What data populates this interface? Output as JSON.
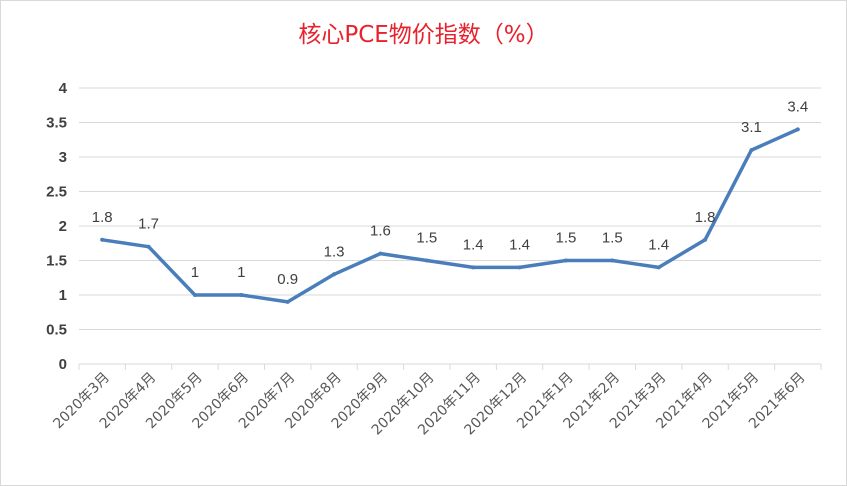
{
  "chart_data": {
    "type": "line",
    "title": "核心PCE物价指数（%）",
    "categories": [
      "2020年3月",
      "2020年4月",
      "2020年5月",
      "2020年6月",
      "2020年7月",
      "2020年8月",
      "2020年9月",
      "2020年10月",
      "2020年11月",
      "2020年12月",
      "2021年1月",
      "2021年2月",
      "2021年3月",
      "2021年4月",
      "2021年5月",
      "2021年6月"
    ],
    "values": [
      1.8,
      1.7,
      1,
      1,
      0.9,
      1.3,
      1.6,
      1.5,
      1.4,
      1.4,
      1.5,
      1.5,
      1.4,
      1.8,
      3.1,
      3.4
    ],
    "data_labels": [
      "1.8",
      "1.7",
      "1",
      "1",
      "0.9",
      "1.3",
      "1.6",
      "1.5",
      "1.4",
      "1.4",
      "1.5",
      "1.5",
      "1.4",
      "1.8",
      "3.1",
      "3.4"
    ],
    "y_ticks": [
      "0",
      "0.5",
      "1",
      "1.5",
      "2",
      "2.5",
      "3",
      "3.5",
      "4"
    ],
    "ylim": [
      0,
      4
    ],
    "grid": true,
    "legend": "none",
    "colors": {
      "line": "#4a7ebb",
      "grid": "#d9d9d9",
      "title": "#e8212c"
    }
  }
}
